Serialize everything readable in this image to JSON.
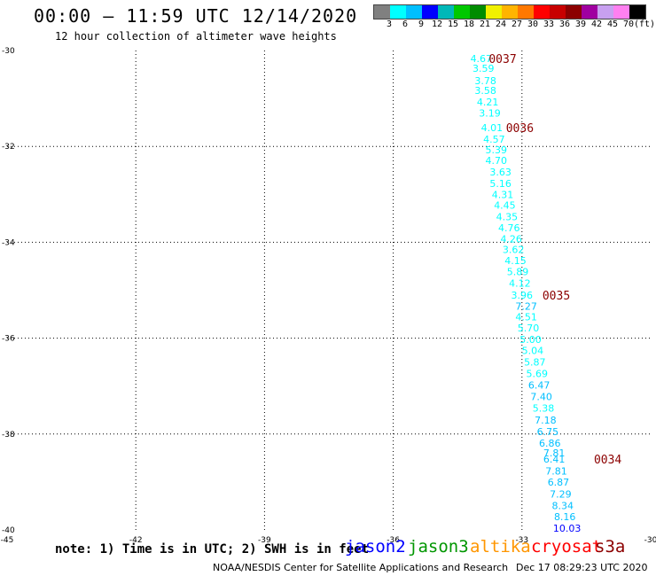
{
  "header": {
    "title": "00:00 – 11:59 UTC 12/14/2020",
    "subtitle": "12 hour collection of altimeter wave heights"
  },
  "legend": {
    "colors": [
      "#808080",
      "#00ffff",
      "#00bfff",
      "#0000ff",
      "#00b8b8",
      "#00c800",
      "#008c00",
      "#f0f000",
      "#ffb400",
      "#ff7800",
      "#ff0000",
      "#c80000",
      "#8c0000",
      "#a000a0",
      "#c8a0f0",
      "#ff80f0",
      "#000000"
    ],
    "labels": [
      "3",
      "6",
      "9",
      "12",
      "15",
      "18",
      "21",
      "24",
      "27",
      "30",
      "33",
      "36",
      "39",
      "42",
      "45",
      "70",
      "(ft)"
    ]
  },
  "note": "note: 1) Time is in UTC; 2) SWH is in feet",
  "satellites": [
    {
      "name": "jason2",
      "color": "#0000ff"
    },
    {
      "name": "jason3",
      "color": "#009600"
    },
    {
      "name": "altika",
      "color": "#ff9600"
    },
    {
      "name": "cryosat",
      "color": "#ff0000"
    },
    {
      "name": "s3a",
      "color": "#8c0000"
    }
  ],
  "footer": {
    "center": "NOAA/NESDIS Center for Satellite Applications and Research",
    "timestamp": "Dec 17 08:29:23 UTC 2020"
  },
  "chart_data": {
    "type": "scatter",
    "xlim": [
      -45,
      -30
    ],
    "ylim": [
      -40,
      -30
    ],
    "x_ticks": [
      -45,
      -42,
      -39,
      -36,
      -33,
      -30
    ],
    "x_tick_labels": [
      "-45",
      "-42",
      "-39",
      "-36",
      "-33",
      "-30"
    ],
    "y_ticks": [
      -30,
      -32,
      -34,
      -36,
      -38,
      -40
    ],
    "y_tick_labels": [
      "-30",
      "-32",
      "-34",
      "-36",
      "-38",
      "-40"
    ],
    "grid": true,
    "points": [
      {
        "lon": -33.95,
        "lat": -30.17,
        "swh": 4.67
      },
      {
        "lon": -33.9,
        "lat": -30.37,
        "swh": 3.59
      },
      {
        "lon": -33.85,
        "lat": -30.63,
        "swh": 3.78
      },
      {
        "lon": -33.85,
        "lat": -30.83,
        "swh": 3.58
      },
      {
        "lon": -33.8,
        "lat": -31.07,
        "swh": 4.21
      },
      {
        "lon": -33.75,
        "lat": -31.3,
        "swh": 3.19
      },
      {
        "lon": -33.7,
        "lat": -31.61,
        "swh": 4.01
      },
      {
        "lon": -33.65,
        "lat": -31.85,
        "swh": 4.57
      },
      {
        "lon": -33.6,
        "lat": -32.07,
        "swh": 5.39
      },
      {
        "lon": -33.6,
        "lat": -32.29,
        "swh": 4.7
      },
      {
        "lon": -33.5,
        "lat": -32.53,
        "swh": 3.63
      },
      {
        "lon": -33.5,
        "lat": -32.77,
        "swh": 5.16
      },
      {
        "lon": -33.45,
        "lat": -33.0,
        "swh": 4.31
      },
      {
        "lon": -33.4,
        "lat": -33.23,
        "swh": 4.45
      },
      {
        "lon": -33.35,
        "lat": -33.47,
        "swh": 4.35
      },
      {
        "lon": -33.3,
        "lat": -33.7,
        "swh": 4.76
      },
      {
        "lon": -33.25,
        "lat": -33.93,
        "swh": 4.26
      },
      {
        "lon": -33.2,
        "lat": -34.15,
        "swh": 3.62
      },
      {
        "lon": -33.15,
        "lat": -34.38,
        "swh": 4.15
      },
      {
        "lon": -33.1,
        "lat": -34.61,
        "swh": 5.89
      },
      {
        "lon": -33.05,
        "lat": -34.85,
        "swh": 4.12
      },
      {
        "lon": -33.0,
        "lat": -35.1,
        "swh": 3.96
      },
      {
        "lon": -32.9,
        "lat": -35.33,
        "swh": 7.27
      },
      {
        "lon": -32.9,
        "lat": -35.55,
        "swh": 4.51
      },
      {
        "lon": -32.85,
        "lat": -35.79,
        "swh": 5.7
      },
      {
        "lon": -32.8,
        "lat": -36.03,
        "swh": 5.0
      },
      {
        "lon": -32.75,
        "lat": -36.26,
        "swh": 5.04
      },
      {
        "lon": -32.7,
        "lat": -36.5,
        "swh": 5.87
      },
      {
        "lon": -32.65,
        "lat": -36.74,
        "swh": 5.69
      },
      {
        "lon": -32.6,
        "lat": -36.98,
        "swh": 6.47
      },
      {
        "lon": -32.55,
        "lat": -37.22,
        "swh": 7.4
      },
      {
        "lon": -32.5,
        "lat": -37.46,
        "swh": 5.38
      },
      {
        "lon": -32.45,
        "lat": -37.71,
        "swh": 7.18
      },
      {
        "lon": -32.4,
        "lat": -37.95,
        "swh": 6.75
      },
      {
        "lon": -32.35,
        "lat": -38.19,
        "swh": 6.86
      },
      {
        "lon": -32.25,
        "lat": -38.39,
        "swh": 7.81
      },
      {
        "lon": -32.25,
        "lat": -38.52,
        "swh": 6.41
      },
      {
        "lon": -32.2,
        "lat": -38.77,
        "swh": 7.81
      },
      {
        "lon": -32.15,
        "lat": -39.0,
        "swh": 6.87
      },
      {
        "lon": -32.1,
        "lat": -39.25,
        "swh": 7.29
      },
      {
        "lon": -32.05,
        "lat": -39.49,
        "swh": 8.34
      },
      {
        "lon": -32.0,
        "lat": -39.72,
        "swh": 8.16
      },
      {
        "lon": -31.95,
        "lat": -39.96,
        "swh": 10.03
      }
    ],
    "time_labels": [
      {
        "text": "0037",
        "lon": -33.45,
        "lat": -30.17
      },
      {
        "text": "0036",
        "lon": -33.05,
        "lat": -31.61
      },
      {
        "text": "0035",
        "lon": -32.2,
        "lat": -35.1
      },
      {
        "text": "0034",
        "lon": -31.0,
        "lat": -38.52
      }
    ],
    "color_scale": {
      "bounds": [
        3,
        6,
        9,
        12,
        15,
        18,
        21,
        24,
        27,
        30,
        33,
        36,
        39,
        42,
        45,
        70
      ],
      "colors": [
        "#00ffff",
        "#00bfff",
        "#0000ff",
        "#00b8b8",
        "#00c800",
        "#008c00",
        "#f0f000",
        "#ffb400",
        "#ff7800",
        "#ff0000",
        "#c80000",
        "#8c0000",
        "#a000a0",
        "#c8a0f0",
        "#ff80f0",
        "#000000"
      ],
      "below_min": "#808080"
    }
  }
}
